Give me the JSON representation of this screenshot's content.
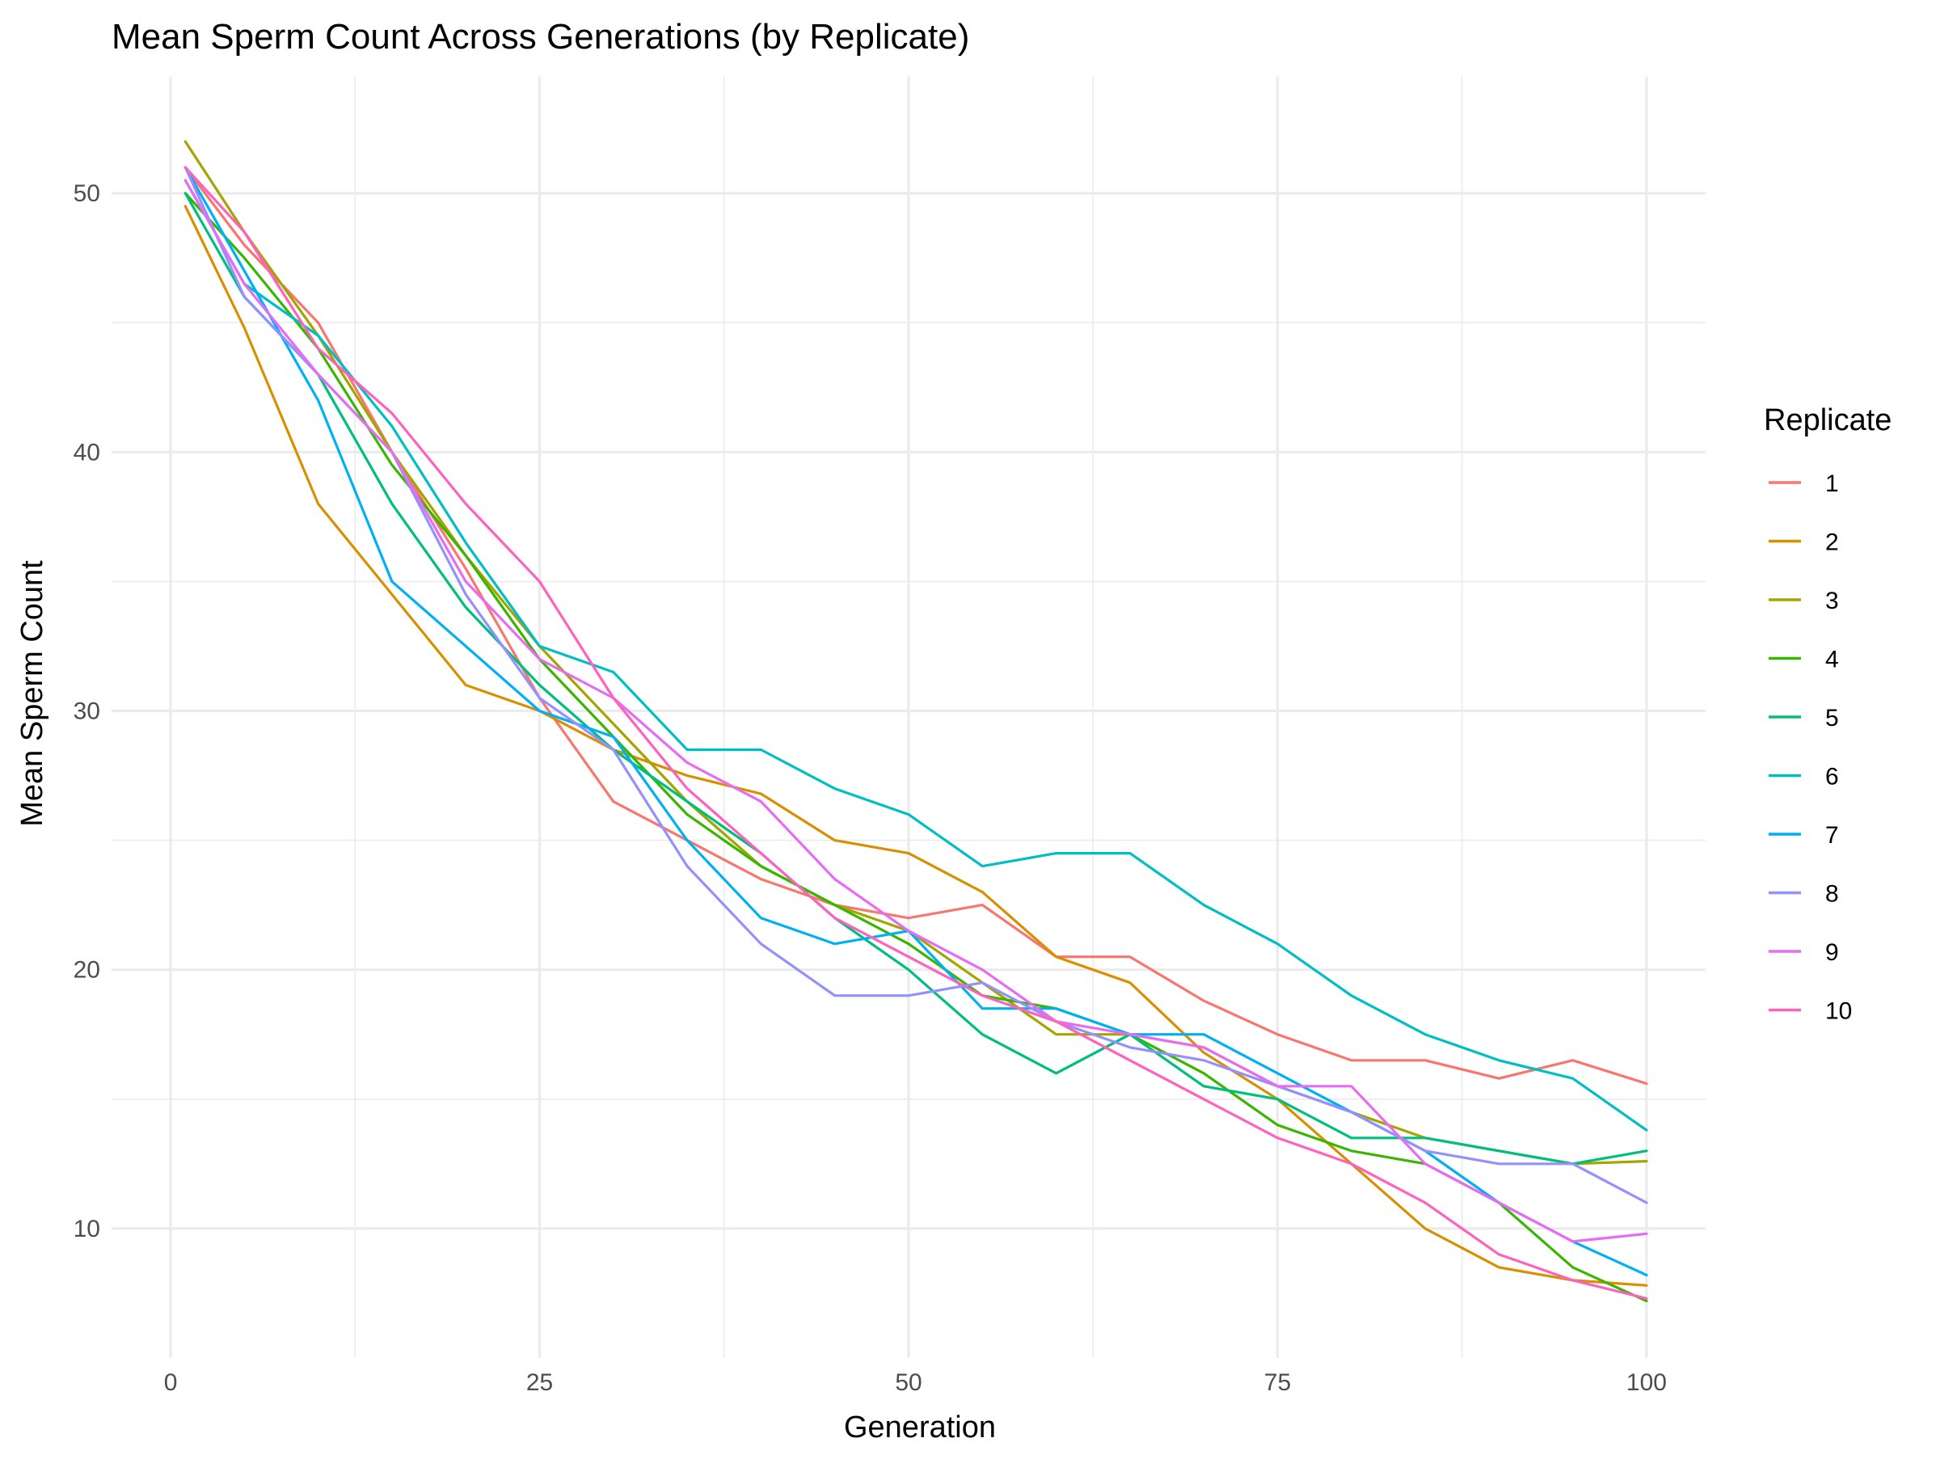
{
  "chart_data": {
    "type": "line",
    "title": "Mean Sperm Count Across Generations (by Replicate)",
    "xlabel": "Generation",
    "ylabel": "Mean Sperm Count",
    "xlim": [
      -4,
      104
    ],
    "ylim": [
      5,
      54.5
    ],
    "x_ticks": [
      0,
      25,
      50,
      75,
      100
    ],
    "y_ticks": [
      10,
      20,
      30,
      40,
      50
    ],
    "grid": true,
    "legend": {
      "title": "Replicate",
      "position": "right"
    },
    "x": [
      1,
      5,
      10,
      15,
      20,
      25,
      30,
      35,
      40,
      45,
      50,
      55,
      60,
      65,
      70,
      75,
      80,
      85,
      90,
      95,
      100
    ],
    "series": [
      {
        "name": "1",
        "color": "#F8766D",
        "values": [
          51.0,
          48.0,
          45.0,
          40.0,
          35.5,
          30.5,
          26.5,
          25.0,
          23.5,
          22.5,
          22.0,
          22.5,
          20.5,
          20.5,
          18.8,
          17.5,
          16.5,
          16.5,
          15.8,
          16.5,
          15.6
        ]
      },
      {
        "name": "2",
        "color": "#D89000",
        "values": [
          49.5,
          44.8,
          38.0,
          34.5,
          31.0,
          30.0,
          28.5,
          27.5,
          26.8,
          25.0,
          24.5,
          23.0,
          20.5,
          19.5,
          16.8,
          15.0,
          12.5,
          10.0,
          8.5,
          8.0,
          7.8
        ]
      },
      {
        "name": "3",
        "color": "#A3A500",
        "values": [
          52.0,
          48.5,
          44.5,
          40.0,
          36.0,
          32.5,
          29.5,
          26.5,
          24.0,
          22.5,
          21.5,
          19.5,
          17.5,
          17.5,
          17.0,
          15.5,
          14.5,
          13.5,
          13.0,
          12.5,
          12.6
        ]
      },
      {
        "name": "4",
        "color": "#39B600",
        "values": [
          50.0,
          47.5,
          44.0,
          39.5,
          36.0,
          32.0,
          29.0,
          26.0,
          24.0,
          22.5,
          21.0,
          19.0,
          18.5,
          17.5,
          16.0,
          14.0,
          13.0,
          12.5,
          11.0,
          8.5,
          7.2
        ]
      },
      {
        "name": "5",
        "color": "#00BF7D",
        "values": [
          50.0,
          46.0,
          43.0,
          38.0,
          34.0,
          31.0,
          28.5,
          26.5,
          24.5,
          22.0,
          20.0,
          17.5,
          16.0,
          17.5,
          15.5,
          15.0,
          13.5,
          13.5,
          13.0,
          12.5,
          13.0
        ]
      },
      {
        "name": "6",
        "color": "#00BFC4",
        "values": [
          50.5,
          46.5,
          44.5,
          41.0,
          36.5,
          32.5,
          31.5,
          28.5,
          28.5,
          27.0,
          26.0,
          24.0,
          24.5,
          24.5,
          22.5,
          21.0,
          19.0,
          17.5,
          16.5,
          15.8,
          13.8
        ]
      },
      {
        "name": "7",
        "color": "#00B0F6",
        "values": [
          51.0,
          47.0,
          42.0,
          35.0,
          32.5,
          30.0,
          29.0,
          25.0,
          22.0,
          21.0,
          21.5,
          18.5,
          18.5,
          17.5,
          17.5,
          16.0,
          14.5,
          13.0,
          11.0,
          9.5,
          8.2
        ]
      },
      {
        "name": "8",
        "color": "#9590FF",
        "values": [
          51.0,
          46.0,
          43.0,
          40.0,
          34.5,
          30.5,
          28.5,
          24.0,
          21.0,
          19.0,
          19.0,
          19.5,
          18.0,
          17.0,
          16.5,
          15.5,
          14.5,
          13.0,
          12.5,
          12.5,
          11.0
        ]
      },
      {
        "name": "9",
        "color": "#E76BF3",
        "values": [
          50.5,
          46.5,
          43.0,
          40.0,
          35.0,
          32.0,
          30.5,
          28.0,
          26.5,
          23.5,
          21.5,
          20.0,
          18.0,
          17.5,
          17.0,
          15.5,
          15.5,
          12.5,
          11.0,
          9.5,
          9.8
        ]
      },
      {
        "name": "10",
        "color": "#FF62BC",
        "values": [
          51.0,
          48.5,
          44.0,
          41.5,
          38.0,
          35.0,
          30.5,
          27.0,
          24.5,
          22.0,
          20.5,
          19.0,
          18.0,
          16.5,
          15.0,
          13.5,
          12.5,
          11.0,
          9.0,
          8.0,
          7.3
        ]
      }
    ]
  }
}
